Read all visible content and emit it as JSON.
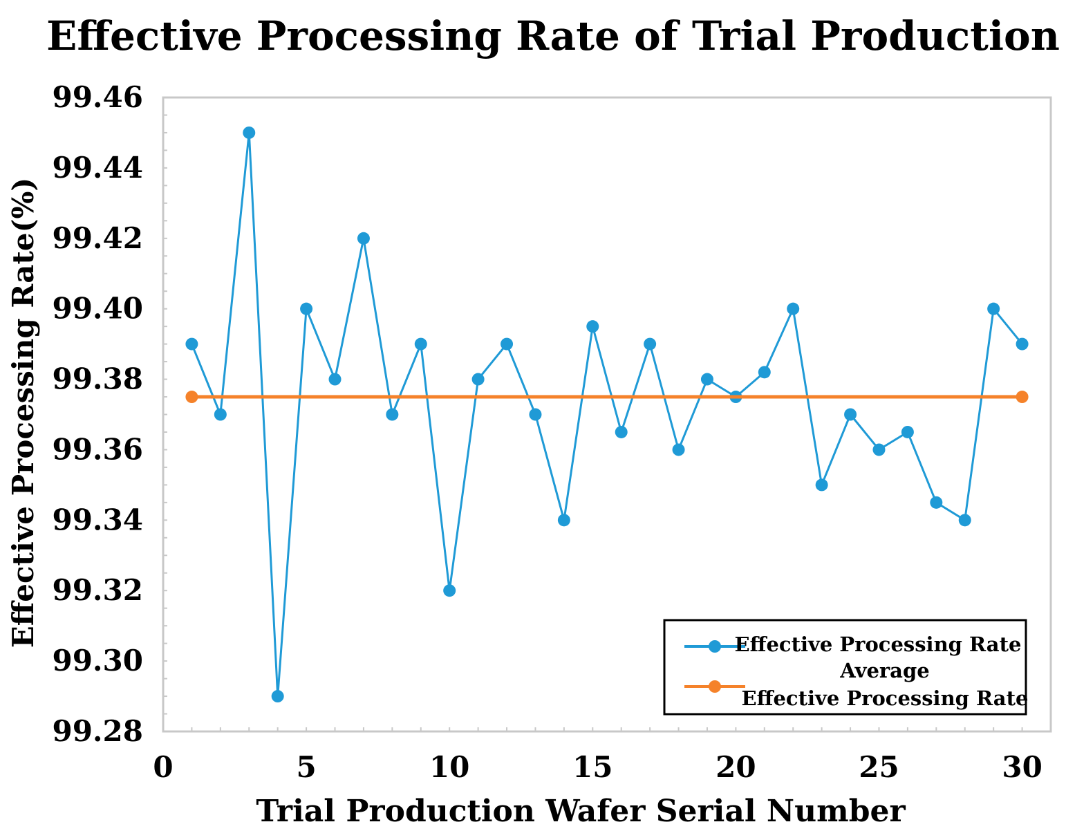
{
  "chart_data": {
    "type": "line",
    "title": "Effective Processing Rate of Trial Production",
    "xlabel": "Trial Production Wafer Serial Number",
    "ylabel": "Effective Processing Rate(%)",
    "xlim": [
      0,
      31
    ],
    "ylim": [
      99.28,
      99.46
    ],
    "x_ticks": [
      0,
      5,
      10,
      15,
      20,
      25,
      30
    ],
    "x_tick_labels": [
      "0",
      "5",
      "10",
      "15",
      "20",
      "25",
      "30"
    ],
    "y_ticks": [
      99.28,
      99.3,
      99.32,
      99.34,
      99.36,
      99.38,
      99.4,
      99.42,
      99.44,
      99.46
    ],
    "y_tick_labels": [
      "99.28",
      "99.30",
      "99.32",
      "99.34",
      "99.36",
      "99.38",
      "99.40",
      "99.42",
      "99.44",
      "99.46"
    ],
    "legend_position": "bottom-right",
    "series": [
      {
        "name": "Effective Processing Rate",
        "color": "#1f9ad6",
        "x": [
          1,
          2,
          3,
          4,
          5,
          6,
          7,
          8,
          9,
          10,
          11,
          12,
          13,
          14,
          15,
          16,
          17,
          18,
          19,
          20,
          21,
          22,
          23,
          24,
          25,
          26,
          27,
          28,
          29,
          30
        ],
        "values": [
          99.39,
          99.37,
          99.45,
          99.29,
          99.4,
          99.38,
          99.42,
          99.37,
          99.39,
          99.32,
          99.38,
          99.39,
          99.37,
          99.34,
          99.395,
          99.365,
          99.39,
          99.36,
          99.38,
          99.375,
          99.382,
          99.4,
          99.35,
          99.37,
          99.36,
          99.365,
          99.345,
          99.34,
          99.4,
          99.39
        ]
      },
      {
        "name": "Average Effective Processing Rate",
        "legend_lines": [
          "Average",
          "Effective Processing Rate"
        ],
        "color": "#f5822a",
        "x": [
          1,
          30
        ],
        "values": [
          99.375,
          99.375
        ]
      }
    ]
  }
}
